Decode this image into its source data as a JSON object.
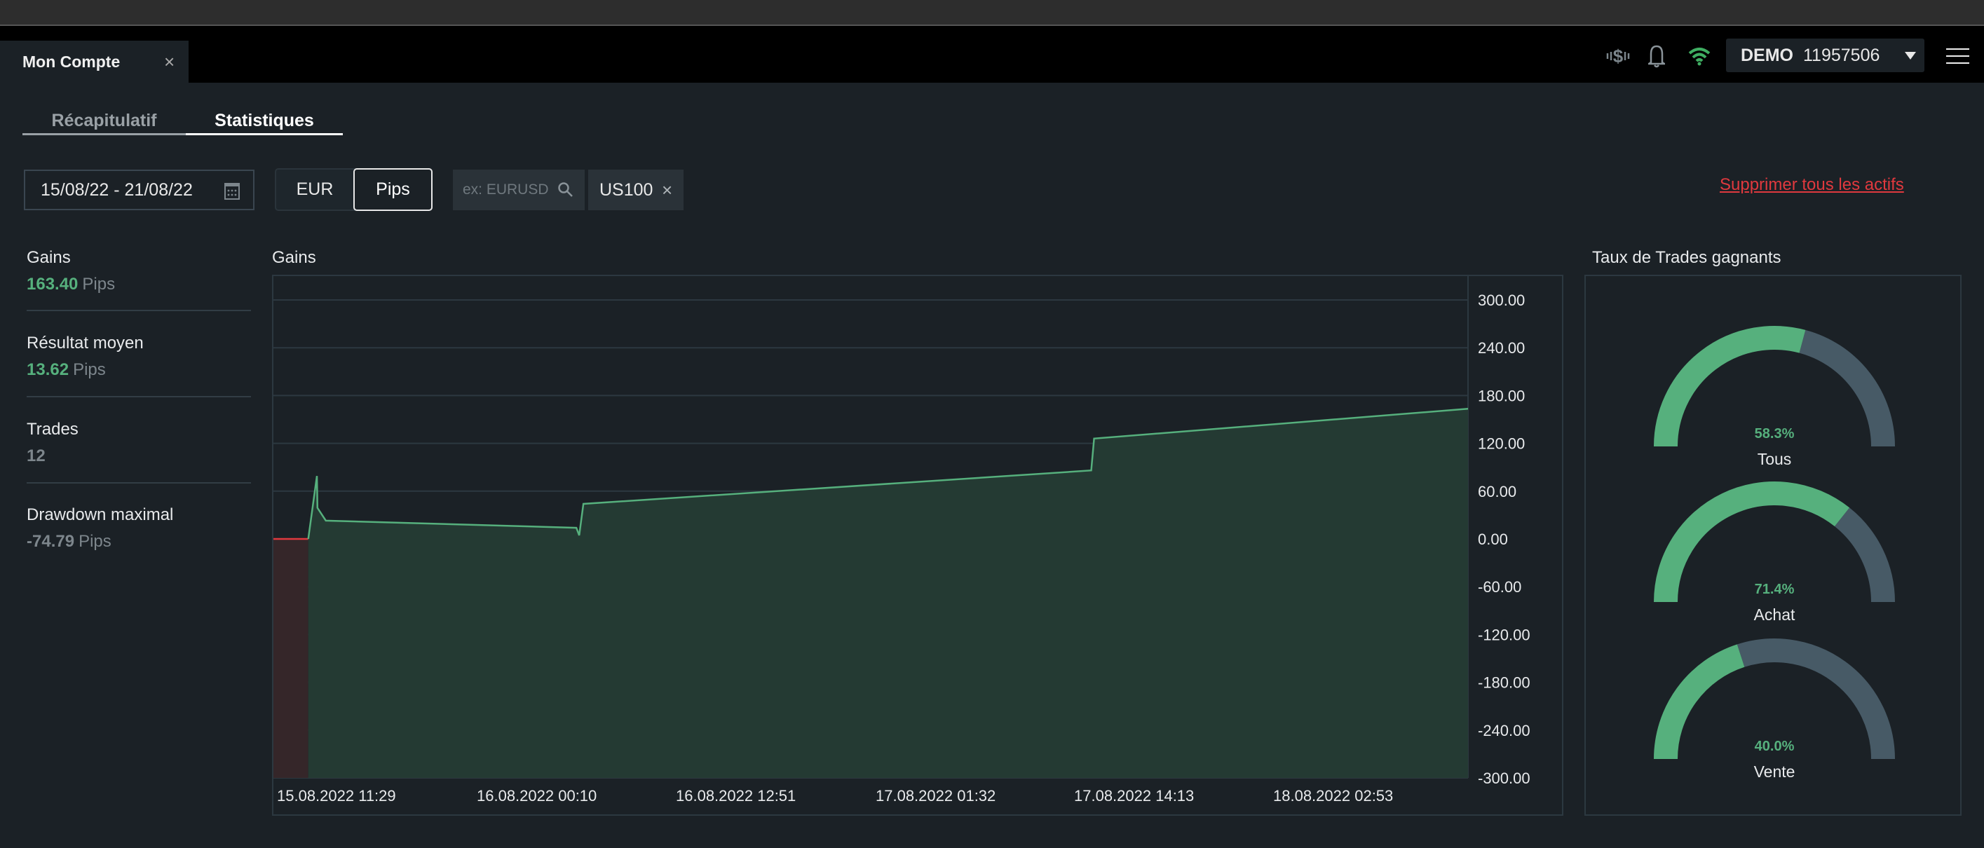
{
  "window": {
    "tab_title": "Mon Compte",
    "tab_close": "×"
  },
  "header": {
    "icons": [
      "dollar-signal-icon",
      "bell-icon",
      "wifi-icon",
      "hamburger-menu-icon"
    ],
    "account_type": "DEMO",
    "account_number": "11957506"
  },
  "subtabs": [
    {
      "label": "Récapitulatif",
      "active": false
    },
    {
      "label": "Statistiques",
      "active": true
    }
  ],
  "filters": {
    "date_range": "15/08/22 - 21/08/22",
    "unit_options": [
      "EUR",
      "Pips"
    ],
    "unit_selected": "Pips",
    "search_placeholder": "ex: EURUSD",
    "asset_chip": "US100",
    "clear_all_link": "Supprimer tous les actifs"
  },
  "stats": [
    {
      "label": "Gains",
      "value": "163.40",
      "unit": "Pips",
      "tone": "positive"
    },
    {
      "label": "Résultat moyen",
      "value": "13.62",
      "unit": "Pips",
      "tone": "positive"
    },
    {
      "label": "Trades",
      "value": "12",
      "unit": "",
      "tone": "neutral"
    },
    {
      "label": "Drawdown maximal",
      "value": "-74.79",
      "unit": "Pips",
      "tone": "neutral"
    }
  ],
  "colors": {
    "positive": "#56b07d",
    "negative": "#e0393e",
    "gauge_track": "#475a66",
    "link": "#e0393e"
  },
  "chart_data": [
    {
      "type": "area",
      "title": "Gains",
      "ylim": [
        -300,
        300
      ],
      "y_ticks": [
        "300.00",
        "240.00",
        "180.00",
        "120.00",
        "60.00",
        "0.00",
        "-60.00",
        "-120.00",
        "-180.00",
        "-240.00",
        "-300.00"
      ],
      "x_ticks": [
        "15.08.2022 11:29",
        "16.08.2022 00:10",
        "16.08.2022 12:51",
        "17.08.2022 01:32",
        "17.08.2022 14:13",
        "18.08.2022 02:53"
      ],
      "xlim": [
        "2022-08-15T11:16",
        "2022-08-18T15:15"
      ],
      "grid": true,
      "series": [
        {
          "color": "#e0393e",
          "points": [
            [
              "2022-08-15T11:16",
              0
            ],
            [
              "2022-08-15T13:29",
              0
            ]
          ]
        },
        {
          "color": "#56b07d",
          "points": [
            [
              "2022-08-15T13:29",
              0
            ],
            [
              "2022-08-15T14:02",
              79
            ],
            [
              "2022-08-15T14:04",
              39
            ],
            [
              "2022-08-15T14:36",
              23
            ],
            [
              "2022-08-16T06:32",
              14
            ],
            [
              "2022-08-16T06:43",
              4.5
            ],
            [
              "2022-08-16T06:59",
              44
            ],
            [
              "2022-08-17T15:17",
              86
            ],
            [
              "2022-08-17T15:28",
              126
            ],
            [
              "2022-08-18T15:15",
              163.4
            ]
          ]
        }
      ]
    },
    {
      "type": "gauge",
      "title": "Taux de Trades gagnants",
      "gauges": [
        {
          "label": "Tous",
          "value": 58.3,
          "text": "58.3%"
        },
        {
          "label": "Achat",
          "value": 71.4,
          "text": "71.4%"
        },
        {
          "label": "Vente",
          "value": 40.0,
          "text": "40.0%"
        }
      ]
    }
  ]
}
